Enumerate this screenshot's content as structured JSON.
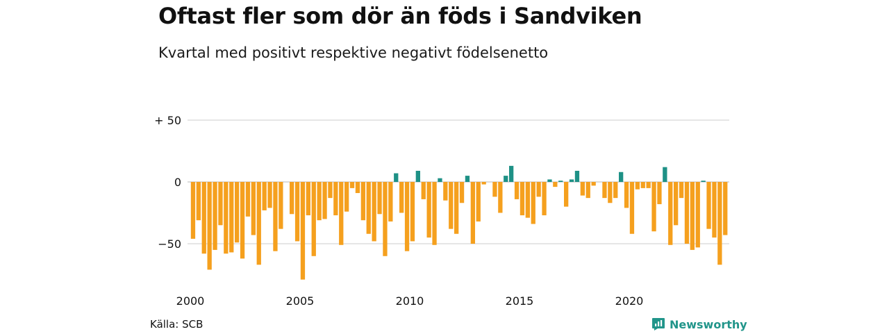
{
  "title": "Oftast fler som dör än föds i Sandviken",
  "subtitle": "Kvartal med positivt respektive negativt födelsenetto",
  "source": "Källa: SCB",
  "brand": "Newsworthy",
  "colors": {
    "negative": "#f5a01e",
    "positive": "#1e9186",
    "grid": "#dddddd",
    "brand": "#21958a"
  },
  "chart_data": {
    "type": "bar",
    "unit": "quarter",
    "grid": true,
    "ylim": [
      -80,
      50
    ],
    "y_ticks": [
      {
        "value": 50,
        "label": "+ 50"
      },
      {
        "value": 0,
        "label": "0"
      },
      {
        "value": -50,
        "label": "−50"
      }
    ],
    "x_ticks": [
      "2000",
      "2005",
      "2010",
      "2015",
      "2020"
    ],
    "categories": [
      "2000Q1",
      "2000Q2",
      "2000Q3",
      "2000Q4",
      "2001Q1",
      "2001Q2",
      "2001Q3",
      "2001Q4",
      "2002Q1",
      "2002Q2",
      "2002Q3",
      "2002Q4",
      "2003Q1",
      "2003Q2",
      "2003Q3",
      "2003Q4",
      "2004Q1",
      "2004Q2",
      "2004Q3",
      "2004Q4",
      "2005Q1",
      "2005Q2",
      "2005Q3",
      "2005Q4",
      "2006Q1",
      "2006Q2",
      "2006Q3",
      "2006Q4",
      "2007Q1",
      "2007Q2",
      "2007Q3",
      "2007Q4",
      "2008Q1",
      "2008Q2",
      "2008Q3",
      "2008Q4",
      "2009Q1",
      "2009Q2",
      "2009Q3",
      "2009Q4",
      "2010Q1",
      "2010Q2",
      "2010Q3",
      "2010Q4",
      "2011Q1",
      "2011Q2",
      "2011Q3",
      "2011Q4",
      "2012Q1",
      "2012Q2",
      "2012Q3",
      "2012Q4",
      "2013Q1",
      "2013Q2",
      "2013Q3",
      "2013Q4",
      "2014Q1",
      "2014Q2",
      "2014Q3",
      "2014Q4",
      "2015Q1",
      "2015Q2",
      "2015Q3",
      "2015Q4",
      "2016Q1",
      "2016Q2",
      "2016Q3",
      "2016Q4",
      "2017Q1",
      "2017Q2",
      "2017Q3",
      "2017Q4",
      "2018Q1",
      "2018Q2",
      "2018Q3",
      "2018Q4",
      "2019Q1",
      "2019Q2",
      "2019Q3",
      "2019Q4",
      "2020Q1",
      "2020Q2",
      "2020Q3",
      "2020Q4",
      "2021Q1",
      "2021Q2",
      "2021Q3",
      "2021Q4",
      "2022Q1",
      "2022Q2",
      "2022Q3",
      "2022Q4",
      "2023Q1",
      "2023Q2",
      "2023Q3",
      "2023Q4",
      "2024Q1",
      "2024Q2",
      "2024Q3"
    ],
    "values": [
      -46,
      -31,
      -58,
      -71,
      -55,
      -35,
      -58,
      -57,
      -49,
      -62,
      -28,
      -43,
      -67,
      -23,
      -21,
      -56,
      -38,
      0,
      -26,
      -48,
      -79,
      -27,
      -60,
      -31,
      -30,
      -13,
      -27,
      -51,
      -24,
      -5,
      -9,
      -31,
      -42,
      -48,
      -26,
      -60,
      -32,
      7,
      -25,
      -56,
      -48,
      9,
      -14,
      -45,
      -51,
      3,
      -15,
      -38,
      -42,
      -17,
      5,
      -50,
      -32,
      -2,
      0,
      -12,
      -25,
      5,
      13,
      -14,
      -27,
      -29,
      -34,
      -12,
      -27,
      2,
      -4,
      1,
      -20,
      2,
      9,
      -11,
      -13,
      -3,
      0,
      -13,
      -17,
      -13,
      8,
      -21,
      -42,
      -6,
      -5,
      -5,
      -40,
      -18,
      12,
      -51,
      -35,
      -13,
      -50,
      -55,
      -53,
      1,
      -38,
      -45,
      -67,
      -43,
      0
    ]
  }
}
